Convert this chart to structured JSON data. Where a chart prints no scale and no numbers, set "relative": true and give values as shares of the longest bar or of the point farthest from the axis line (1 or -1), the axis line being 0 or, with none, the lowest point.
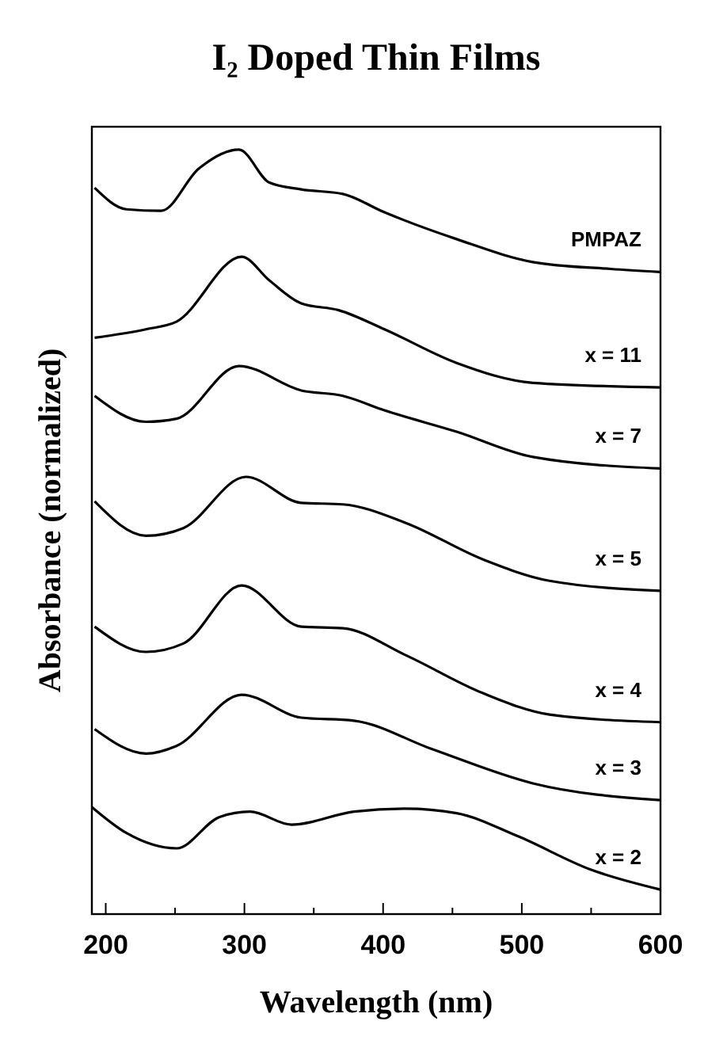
{
  "chart_data": {
    "type": "line",
    "title": "I₂ Doped Thin Films",
    "xlabel": "Wavelength  (nm)",
    "ylabel": "Absorbance (normalized)",
    "relative": true,
    "xlim": [
      190,
      600
    ],
    "xticks": [
      200,
      {
        "value": 250,
        "label": null
      },
      300,
      {
        "value": 350,
        "label": null
      },
      400,
      {
        "value": 450,
        "label": null
      },
      500,
      {
        "value": 550,
        "label": null
      },
      600
    ],
    "marker": "none",
    "grid": false,
    "series": [
      {
        "name": "PMPAZ",
        "color": "#000000",
        "x": [
          192,
          215,
          240,
          267,
          296,
          318,
          341,
          371,
          401,
          453,
          508,
          564,
          600
        ],
        "values": [
          0.95,
          0.922,
          0.92,
          0.975,
          1.0,
          0.957,
          0.948,
          0.942,
          0.918,
          0.883,
          0.853,
          0.844,
          0.84
        ]
      },
      {
        "name": "x = 11",
        "color": "#000000",
        "x": [
          192,
          229,
          251,
          298,
          318,
          341,
          368,
          401,
          453,
          508,
          600
        ],
        "values": [
          0.754,
          0.765,
          0.775,
          0.86,
          0.829,
          0.799,
          0.79,
          0.765,
          0.721,
          0.695,
          0.689
        ]
      },
      {
        "name": "x = 7",
        "color": "#000000",
        "x": [
          192,
          229,
          251,
          296,
          341,
          371,
          401,
          453,
          508,
          600
        ],
        "values": [
          0.678,
          0.644,
          0.648,
          0.717,
          0.685,
          0.678,
          0.659,
          0.631,
          0.598,
          0.583
        ]
      },
      {
        "name": "x = 5",
        "color": "#000000",
        "x": [
          192,
          229,
          256,
          301,
          341,
          371,
          416,
          472,
          520,
          600
        ],
        "values": [
          0.54,
          0.495,
          0.505,
          0.572,
          0.538,
          0.536,
          0.512,
          0.464,
          0.436,
          0.423
        ]
      },
      {
        "name": "x = 4",
        "color": "#000000",
        "x": [
          192,
          229,
          256,
          298,
          341,
          371,
          416,
          472,
          520,
          600
        ],
        "values": [
          0.376,
          0.343,
          0.354,
          0.43,
          0.376,
          0.374,
          0.339,
          0.289,
          0.261,
          0.251
        ]
      },
      {
        "name": "x = 3",
        "color": "#000000",
        "x": [
          192,
          229,
          251,
          298,
          341,
          379,
          435,
          508,
          600
        ],
        "values": [
          0.242,
          0.21,
          0.22,
          0.287,
          0.257,
          0.253,
          0.216,
          0.171,
          0.149
        ]
      },
      {
        "name": "x = 2",
        "color": "#000000",
        "x": [
          190,
          215,
          251,
          282,
          304,
          334,
          379,
          416,
          453,
          497,
          550,
          600
        ],
        "values": [
          0.14,
          0.106,
          0.086,
          0.127,
          0.134,
          0.117,
          0.134,
          0.138,
          0.132,
          0.102,
          0.058,
          0.032
        ]
      }
    ]
  }
}
